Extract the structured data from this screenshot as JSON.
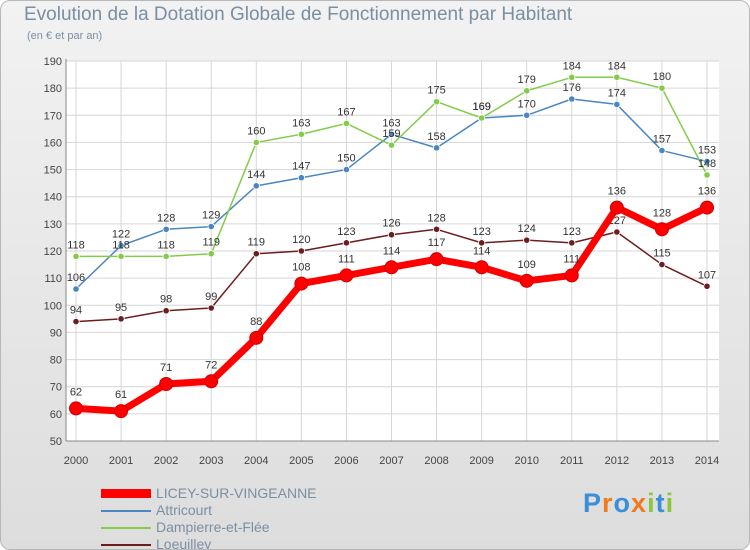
{
  "chart_data": {
    "type": "line",
    "title": "Evolution de la Dotation Globale de Fonctionnement par Habitant",
    "subtitle": "(en € et par an)",
    "xlabel": "",
    "ylabel": "",
    "x": [
      "2000",
      "2001",
      "2002",
      "2003",
      "2004",
      "2005",
      "2006",
      "2007",
      "2008",
      "2009",
      "2010",
      "2011",
      "2012",
      "2013",
      "2014"
    ],
    "ylim": [
      50,
      190
    ],
    "yticks": [
      50,
      60,
      70,
      80,
      90,
      100,
      110,
      120,
      130,
      140,
      150,
      160,
      170,
      180,
      190
    ],
    "grid": true,
    "legend_position": "bottom-left",
    "series": [
      {
        "name": "Attricourt",
        "color": "#4a86c0",
        "values": [
          106,
          122,
          128,
          129,
          144,
          147,
          150,
          163,
          158,
          169,
          170,
          176,
          174,
          157,
          153
        ]
      },
      {
        "name": "Dampierre-et-Flée",
        "color": "#82cc4a",
        "values": [
          118,
          118,
          118,
          119,
          160,
          163,
          167,
          159,
          175,
          169,
          179,
          184,
          184,
          180,
          148
        ]
      },
      {
        "name": "Loeuilley",
        "color": "#6b1e1e",
        "values": [
          94,
          95,
          98,
          99,
          119,
          120,
          123,
          126,
          128,
          123,
          124,
          123,
          127,
          115,
          107
        ]
      },
      {
        "name": "LICEY-SUR-VINGEANNE",
        "color": "#ff0000",
        "values": [
          62,
          61,
          71,
          72,
          88,
          108,
          111,
          114,
          117,
          114,
          109,
          111,
          136,
          128,
          136
        ]
      }
    ],
    "legend_order": [
      "LICEY-SUR-VINGEANNE",
      "Attricourt",
      "Dampierre-et-Flée",
      "Loeuilley"
    ]
  },
  "branding": {
    "name": "Proxiti",
    "letters": [
      "P",
      "r",
      "o",
      "x",
      "i",
      "t",
      "i"
    ],
    "letter_colors": [
      "#3a8fd8",
      "#f07a1e",
      "#3a8fd8",
      "#f07a1e",
      "#8dc63f",
      "#3a8fd8",
      "#8dc63f"
    ]
  }
}
